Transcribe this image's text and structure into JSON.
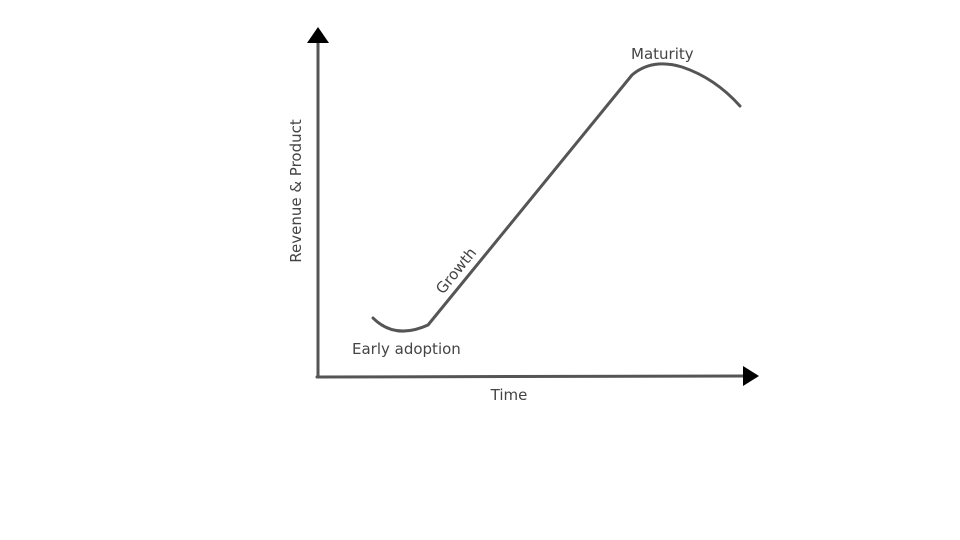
{
  "diagram": {
    "y_axis_label": "Revenue & Product",
    "x_axis_label": "Time",
    "stages": [
      {
        "label": "Early adoption"
      },
      {
        "label": "Growth"
      },
      {
        "label": "Maturity"
      }
    ],
    "line_color": "#555555",
    "arrow_color": "#000000",
    "text_color": "#444444"
  }
}
